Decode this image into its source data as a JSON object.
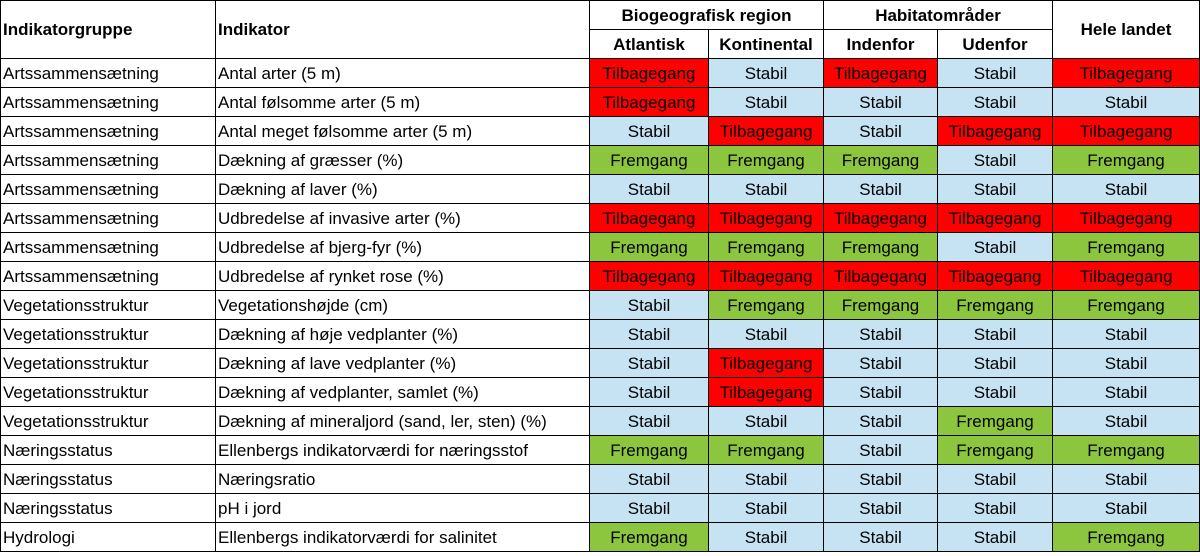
{
  "headers": {
    "group": "Indikatorgruppe",
    "indicator": "Indikator",
    "biogeo": "Biogeografisk region",
    "habitat": "Habitatområder",
    "whole": "Hele landet",
    "atlantisk": "Atlantisk",
    "kontinental": "Kontinental",
    "indenfor": "Indenfor",
    "udenfor": "Udenfor"
  },
  "rows": [
    {
      "group": "Artssammensætning",
      "indicator": "Antal arter (5 m)",
      "values": [
        "Tilbagegang",
        "Stabil",
        "Tilbagegang",
        "Stabil",
        "Tilbagegang"
      ]
    },
    {
      "group": "Artssammensætning",
      "indicator": "Antal følsomme arter (5 m)",
      "values": [
        "Tilbagegang",
        "Stabil",
        "Stabil",
        "Stabil",
        "Stabil"
      ]
    },
    {
      "group": "Artssammensætning",
      "indicator": "Antal meget følsomme arter (5 m)",
      "values": [
        "Stabil",
        "Tilbagegang",
        "Stabil",
        "Tilbagegang",
        "Tilbagegang"
      ]
    },
    {
      "group": "Artssammensætning",
      "indicator": "Dækning af græsser (%)",
      "values": [
        "Fremgang",
        "Fremgang",
        "Fremgang",
        "Stabil",
        "Fremgang"
      ]
    },
    {
      "group": "Artssammensætning",
      "indicator": "Dækning af laver (%)",
      "values": [
        "Stabil",
        "Stabil",
        "Stabil",
        "Stabil",
        "Stabil"
      ]
    },
    {
      "group": "Artssammensætning",
      "indicator": "Udbredelse af invasive arter (%)",
      "values": [
        "Tilbagegang",
        "Tilbagegang",
        "Tilbagegang",
        "Tilbagegang",
        "Tilbagegang"
      ]
    },
    {
      "group": "Artssammensætning",
      "indicator": "Udbredelse af bjerg-fyr (%)",
      "values": [
        "Fremgang",
        "Fremgang",
        "Fremgang",
        "Stabil",
        "Fremgang"
      ]
    },
    {
      "group": "Artssammensætning",
      "indicator": "Udbredelse af rynket rose (%)",
      "values": [
        "Tilbagegang",
        "Tilbagegang",
        "Tilbagegang",
        "Tilbagegang",
        "Tilbagegang"
      ]
    },
    {
      "group": "Vegetationsstruktur",
      "indicator": "Vegetationshøjde (cm)",
      "values": [
        "Stabil",
        "Fremgang",
        "Fremgang",
        "Fremgang",
        "Fremgang"
      ]
    },
    {
      "group": "Vegetationsstruktur",
      "indicator": "Dækning af høje vedplanter (%)",
      "values": [
        "Stabil",
        "Stabil",
        "Stabil",
        "Stabil",
        "Stabil"
      ]
    },
    {
      "group": "Vegetationsstruktur",
      "indicator": "Dækning af lave vedplanter (%)",
      "values": [
        "Stabil",
        "Tilbagegang",
        "Stabil",
        "Stabil",
        "Stabil"
      ]
    },
    {
      "group": "Vegetationsstruktur",
      "indicator": "Dækning af vedplanter, samlet (%)",
      "values": [
        "Stabil",
        "Tilbagegang",
        "Stabil",
        "Stabil",
        "Stabil"
      ]
    },
    {
      "group": "Vegetationsstruktur",
      "indicator": "Dækning af mineraljord (sand, ler, sten) (%)",
      "values": [
        "Stabil",
        "Stabil",
        "Stabil",
        "Fremgang",
        "Stabil"
      ]
    },
    {
      "group": "Næringsstatus",
      "indicator": "Ellenbergs indikatorværdi for næringsstof",
      "values": [
        "Fremgang",
        "Fremgang",
        "Stabil",
        "Fremgang",
        "Fremgang"
      ]
    },
    {
      "group": "Næringsstatus",
      "indicator": "Næringsratio",
      "values": [
        "Stabil",
        "Stabil",
        "Stabil",
        "Stabil",
        "Stabil"
      ]
    },
    {
      "group": "Næringsstatus",
      "indicator": "pH i jord",
      "values": [
        "Stabil",
        "Stabil",
        "Stabil",
        "Stabil",
        "Stabil"
      ]
    },
    {
      "group": "Hydrologi",
      "indicator": "Ellenbergs indikatorværdi for salinitet",
      "values": [
        "Fremgang",
        "Stabil",
        "Stabil",
        "Stabil",
        "Fremgang"
      ]
    }
  ],
  "colors": {
    "Stabil": "#c5e3f3",
    "Fremgang": "#8cc63f",
    "Tilbagegang": "#ff0000"
  }
}
